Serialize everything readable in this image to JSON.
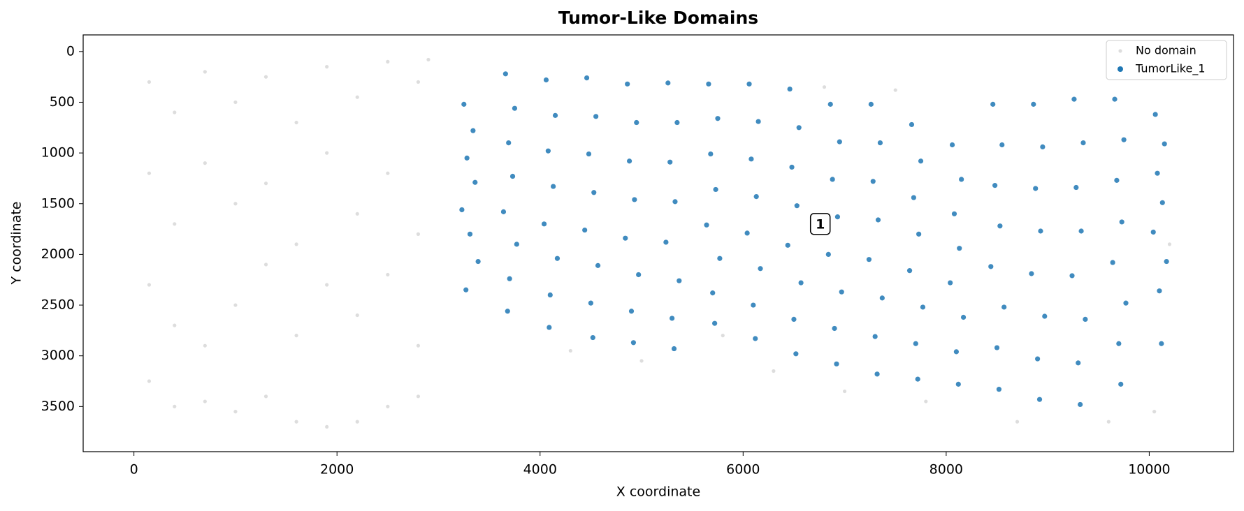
{
  "chart_data": {
    "type": "scatter",
    "title": "Tumor-Like Domains",
    "x_label": "X coordinate",
    "y_label": "Y coordinate",
    "xlim": [
      -500,
      10830
    ],
    "ylim": [
      3945,
      -164
    ],
    "xticks": [
      0,
      2000,
      4000,
      6000,
      8000,
      10000
    ],
    "yticks": [
      0,
      500,
      1000,
      1500,
      2000,
      2500,
      3000,
      3500
    ],
    "legend": "upper right",
    "annotations": [
      {
        "text": "1",
        "x": 6760,
        "y": 1700
      }
    ],
    "series": [
      {
        "name": "No domain",
        "color": "#dddddd",
        "x": [
          150,
          150,
          150,
          150,
          400,
          400,
          400,
          400,
          700,
          700,
          700,
          700,
          1000,
          1000,
          1000,
          1000,
          1300,
          1300,
          1300,
          1300,
          1600,
          1600,
          1600,
          1600,
          1900,
          1900,
          1900,
          1900,
          2200,
          2200,
          2200,
          2200,
          2500,
          2500,
          2500,
          2500,
          2800,
          2800,
          2800,
          2800,
          4300,
          5000,
          5800,
          6300,
          7000,
          7800,
          8700,
          9600,
          10050,
          6800,
          7500,
          2900,
          10200
        ],
        "values": [
          300,
          1200,
          2300,
          3250,
          600,
          1700,
          2700,
          3500,
          200,
          1100,
          2900,
          3450,
          500,
          1500,
          2500,
          3550,
          250,
          1300,
          2100,
          3400,
          700,
          1900,
          2800,
          3650,
          150,
          1000,
          2300,
          3700,
          450,
          1600,
          2600,
          3650,
          100,
          1200,
          2200,
          3500,
          300,
          1800,
          2900,
          3400,
          2950,
          3050,
          2800,
          3150,
          3350,
          3450,
          3650,
          3650,
          3550,
          350,
          380,
          80,
          1900
        ]
      },
      {
        "name": "TumorLike_1",
        "color": "#1f77b4",
        "x": [
          3250,
          3340,
          3280,
          3360,
          3230,
          3310,
          3390,
          3270,
          3660,
          3750,
          3690,
          3730,
          3640,
          3770,
          3700,
          3680,
          4060,
          4150,
          4080,
          4130,
          4040,
          4170,
          4100,
          4090,
          4460,
          4550,
          4480,
          4530,
          4440,
          4570,
          4500,
          4520,
          4860,
          4950,
          4880,
          4930,
          4840,
          4970,
          4900,
          4920,
          5260,
          5350,
          5280,
          5330,
          5240,
          5370,
          5300,
          5320,
          5660,
          5750,
          5680,
          5730,
          5640,
          5770,
          5700,
          5720,
          6060,
          6150,
          6080,
          6130,
          6040,
          6170,
          6100,
          6120,
          6460,
          6550,
          6480,
          6530,
          6440,
          6570,
          6500,
          6520,
          6860,
          6950,
          6880,
          6930,
          6840,
          6970,
          6900,
          6920,
          7260,
          7350,
          7280,
          7330,
          7240,
          7370,
          7300,
          7320,
          7660,
          7750,
          7680,
          7730,
          7640,
          7770,
          7700,
          7720,
          8060,
          8150,
          8080,
          8130,
          8040,
          8170,
          8100,
          8120,
          8460,
          8550,
          8480,
          8530,
          8440,
          8570,
          8500,
          8520,
          8860,
          8950,
          8880,
          8930,
          8840,
          8970,
          8900,
          8920,
          9260,
          9350,
          9280,
          9330,
          9240,
          9370,
          9300,
          9320,
          9660,
          9750,
          9680,
          9730,
          9640,
          9770,
          9700,
          9720,
          10060,
          10150,
          10080,
          10130,
          10040,
          10170,
          10100,
          10120
        ],
        "values": [
          520,
          780,
          1050,
          1290,
          1560,
          1800,
          2070,
          2350,
          220,
          560,
          900,
          1230,
          1580,
          1900,
          2240,
          2560,
          280,
          630,
          980,
          1330,
          1700,
          2040,
          2400,
          2720,
          260,
          640,
          1010,
          1390,
          1760,
          2110,
          2480,
          2820,
          320,
          700,
          1080,
          1460,
          1840,
          2200,
          2560,
          2870,
          310,
          700,
          1090,
          1480,
          1880,
          2260,
          2630,
          2930,
          320,
          660,
          1010,
          1360,
          1710,
          2040,
          2380,
          2680,
          320,
          690,
          1060,
          1430,
          1790,
          2140,
          2500,
          2830,
          370,
          750,
          1140,
          1520,
          1910,
          2280,
          2640,
          2980,
          520,
          890,
          1260,
          1630,
          2000,
          2370,
          2730,
          3080,
          520,
          900,
          1280,
          1660,
          2050,
          2430,
          2810,
          3180,
          720,
          1080,
          1440,
          1800,
          2160,
          2520,
          2880,
          3230,
          920,
          1260,
          1600,
          1940,
          2280,
          2620,
          2960,
          3280,
          520,
          920,
          1320,
          1720,
          2120,
          2520,
          2920,
          3330,
          520,
          940,
          1350,
          1770,
          2190,
          2610,
          3030,
          3430,
          470,
          900,
          1340,
          1770,
          2210,
          2640,
          3070,
          3480,
          470,
          870,
          1270,
          1680,
          2080,
          2480,
          2880,
          3280,
          620,
          910,
          1200,
          1490,
          1780,
          2070,
          2360,
          2880
        ]
      }
    ]
  }
}
